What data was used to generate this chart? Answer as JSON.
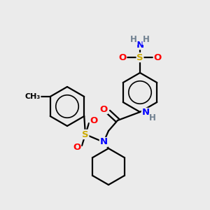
{
  "bg_color": "#ebebeb",
  "atom_colors": {
    "C": "#000000",
    "H": "#708090",
    "N": "#0000ff",
    "O": "#ff0000",
    "S": "#ccaa00"
  },
  "bond_color": "#000000",
  "bond_width": 1.6,
  "font_size_atom": 9.5,
  "font_size_H": 8.5
}
